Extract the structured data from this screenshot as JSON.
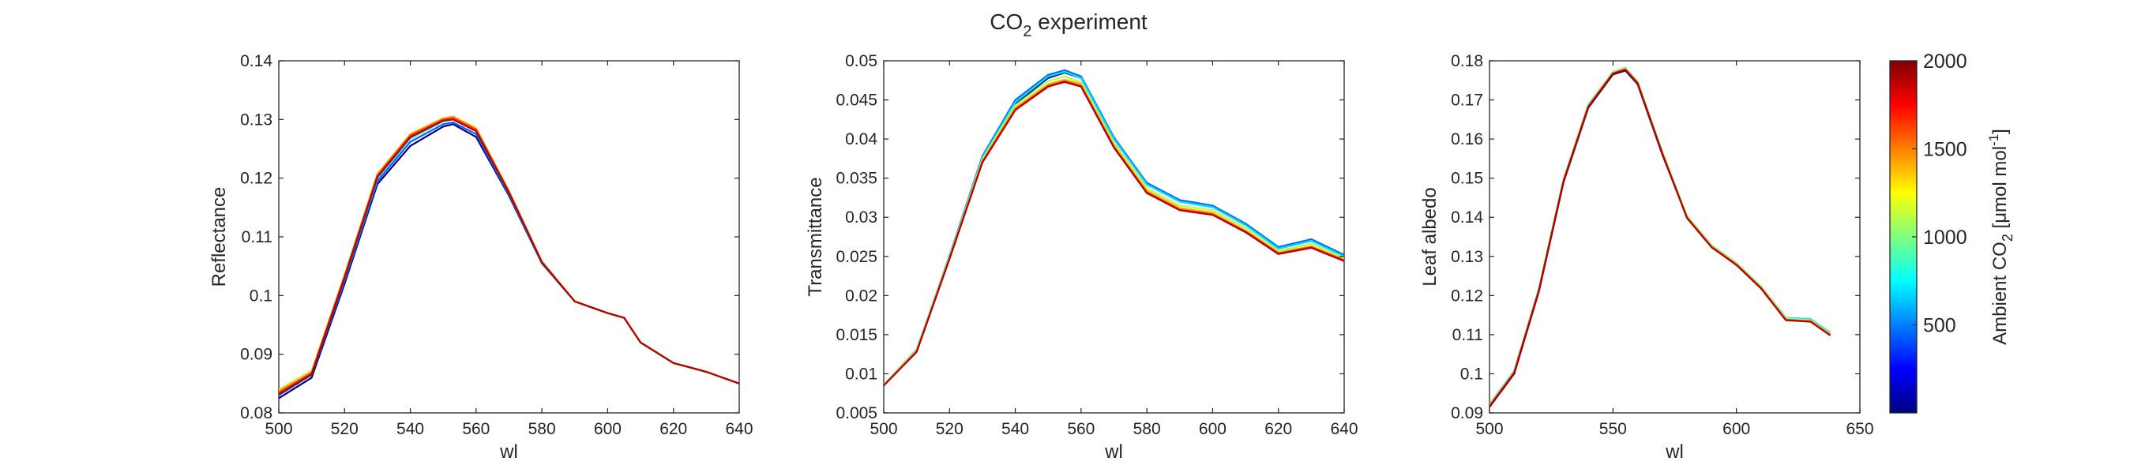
{
  "figure": {
    "title_main": "CO",
    "title_sub": "2",
    "title_rest": " experiment"
  },
  "chart_data": [
    {
      "type": "line",
      "xlabel": "wl",
      "ylabel": "Reflectance",
      "xlim": [
        500,
        640
      ],
      "ylim": [
        0.08,
        0.14
      ],
      "xticks": [
        500,
        520,
        540,
        560,
        580,
        600,
        620,
        640
      ],
      "yticks": [
        0.08,
        0.09,
        0.1,
        0.11,
        0.12,
        0.13,
        0.14
      ],
      "ytick_labels": [
        "0.08",
        "0.09",
        "0.1",
        "0.11",
        "0.12",
        "0.13",
        "0.14"
      ],
      "grid": false,
      "series": [
        {
          "color": "#00007f",
          "x": [
            500,
            510,
            520,
            530,
            540,
            550,
            553,
            560,
            570,
            580,
            590,
            600,
            605,
            610,
            620,
            630,
            640
          ],
          "y": [
            0.0825,
            0.086,
            0.102,
            0.119,
            0.1255,
            0.1288,
            0.1292,
            0.127,
            0.117,
            0.1055,
            0.099,
            0.097,
            0.0962,
            0.092,
            0.0885,
            0.087,
            0.085
          ]
        },
        {
          "color": "#0066ff",
          "x": [
            500,
            510,
            520,
            530,
            540,
            550,
            553,
            560,
            570,
            580,
            590,
            600,
            605,
            610,
            620,
            630,
            640
          ],
          "y": [
            0.083,
            0.0865,
            0.1025,
            0.1195,
            0.1262,
            0.1292,
            0.1295,
            0.1275,
            0.1172,
            0.1055,
            0.099,
            0.097,
            0.0962,
            0.092,
            0.0885,
            0.087,
            0.085
          ]
        },
        {
          "color": "#00e5ff",
          "x": [
            500,
            510,
            520,
            530,
            540,
            550,
            553,
            560,
            570,
            580,
            590,
            600,
            605,
            610,
            620,
            630,
            640
          ],
          "y": [
            0.0835,
            0.087,
            0.103,
            0.12,
            0.1268,
            0.1297,
            0.13,
            0.128,
            0.1175,
            0.1057,
            0.099,
            0.097,
            0.0962,
            0.092,
            0.0885,
            0.087,
            0.085
          ]
        },
        {
          "color": "#b3ff4d",
          "x": [
            500,
            510,
            520,
            530,
            540,
            550,
            553,
            560,
            570,
            580,
            590,
            600,
            605,
            610,
            620,
            630,
            640
          ],
          "y": [
            0.084,
            0.0872,
            0.1033,
            0.1205,
            0.1272,
            0.13,
            0.1303,
            0.1283,
            0.1177,
            0.1057,
            0.099,
            0.097,
            0.0962,
            0.092,
            0.0885,
            0.087,
            0.085
          ]
        },
        {
          "color": "#ffb300",
          "x": [
            500,
            510,
            520,
            530,
            540,
            550,
            553,
            560,
            570,
            580,
            590,
            600,
            605,
            610,
            620,
            630,
            640
          ],
          "y": [
            0.0838,
            0.087,
            0.1035,
            0.1207,
            0.1275,
            0.1302,
            0.1305,
            0.1285,
            0.1178,
            0.1058,
            0.099,
            0.097,
            0.0962,
            0.092,
            0.0885,
            0.087,
            0.085
          ]
        },
        {
          "color": "#ff4000",
          "x": [
            500,
            510,
            520,
            530,
            540,
            550,
            553,
            560,
            570,
            580,
            590,
            600,
            605,
            610,
            620,
            630,
            640
          ],
          "y": [
            0.0835,
            0.0868,
            0.1033,
            0.1205,
            0.1273,
            0.13,
            0.1303,
            0.1283,
            0.1177,
            0.1057,
            0.099,
            0.097,
            0.0962,
            0.092,
            0.0885,
            0.087,
            0.085
          ]
        },
        {
          "color": "#b30000",
          "x": [
            500,
            510,
            520,
            530,
            540,
            550,
            553,
            560,
            570,
            580,
            590,
            600,
            605,
            610,
            620,
            630,
            640
          ],
          "y": [
            0.0832,
            0.0866,
            0.103,
            0.1202,
            0.127,
            0.1298,
            0.13,
            0.128,
            0.1175,
            0.1057,
            0.099,
            0.097,
            0.0962,
            0.092,
            0.0885,
            0.087,
            0.085
          ]
        }
      ]
    },
    {
      "type": "line",
      "xlabel": "wl",
      "ylabel": "Transmittance",
      "xlim": [
        500,
        640
      ],
      "ylim": [
        0.005,
        0.05
      ],
      "xticks": [
        500,
        520,
        540,
        560,
        580,
        600,
        620,
        640
      ],
      "yticks": [
        0.005,
        0.01,
        0.015,
        0.02,
        0.025,
        0.03,
        0.035,
        0.04,
        0.045,
        0.05
      ],
      "ytick_labels": [
        "0.005",
        "0.01",
        "0.015",
        "0.02",
        "0.025",
        "0.03",
        "0.035",
        "0.04",
        "0.045",
        "0.05"
      ],
      "grid": false,
      "series": [
        {
          "color": "#00007f",
          "x": [
            500,
            510,
            520,
            530,
            540,
            550,
            555,
            560,
            570,
            580,
            590,
            600,
            610,
            620,
            630,
            640
          ],
          "y": [
            0.0085,
            0.013,
            0.025,
            0.0375,
            0.0445,
            0.0478,
            0.0485,
            0.0478,
            0.04,
            0.0342,
            0.032,
            0.0313,
            0.029,
            0.026,
            0.027,
            0.025
          ]
        },
        {
          "color": "#0066ff",
          "x": [
            500,
            510,
            520,
            530,
            540,
            550,
            555,
            560,
            570,
            580,
            590,
            600,
            610,
            620,
            630,
            640
          ],
          "y": [
            0.0085,
            0.013,
            0.0251,
            0.0378,
            0.045,
            0.0482,
            0.0488,
            0.048,
            0.0402,
            0.0344,
            0.0322,
            0.0315,
            0.0292,
            0.0262,
            0.0272,
            0.0252
          ]
        },
        {
          "color": "#00e5ff",
          "x": [
            500,
            510,
            520,
            530,
            540,
            550,
            555,
            560,
            570,
            580,
            590,
            600,
            610,
            620,
            630,
            640
          ],
          "y": [
            0.0086,
            0.0131,
            0.025,
            0.0376,
            0.0447,
            0.048,
            0.0486,
            0.0478,
            0.04,
            0.0342,
            0.032,
            0.0313,
            0.029,
            0.026,
            0.027,
            0.025
          ]
        },
        {
          "color": "#b3ff4d",
          "x": [
            500,
            510,
            520,
            530,
            540,
            550,
            555,
            560,
            570,
            580,
            590,
            600,
            610,
            620,
            630,
            640
          ],
          "y": [
            0.0086,
            0.013,
            0.0249,
            0.0374,
            0.0443,
            0.0474,
            0.048,
            0.0472,
            0.0395,
            0.0337,
            0.0315,
            0.0309,
            0.0286,
            0.0257,
            0.0266,
            0.0248
          ]
        },
        {
          "color": "#ffb300",
          "x": [
            500,
            510,
            520,
            530,
            540,
            550,
            555,
            560,
            570,
            580,
            590,
            600,
            610,
            620,
            630,
            640
          ],
          "y": [
            0.0085,
            0.0129,
            0.0248,
            0.0372,
            0.044,
            0.047,
            0.0476,
            0.047,
            0.0392,
            0.0334,
            0.0312,
            0.0306,
            0.0283,
            0.0255,
            0.0263,
            0.0246
          ]
        },
        {
          "color": "#ff4000",
          "x": [
            500,
            510,
            520,
            530,
            540,
            550,
            555,
            560,
            570,
            580,
            590,
            600,
            610,
            620,
            630,
            640
          ],
          "y": [
            0.0085,
            0.0128,
            0.0247,
            0.0371,
            0.0438,
            0.0468,
            0.0474,
            0.0468,
            0.039,
            0.0332,
            0.031,
            0.0304,
            0.0282,
            0.0254,
            0.0262,
            0.0245
          ]
        },
        {
          "color": "#b30000",
          "x": [
            500,
            510,
            520,
            530,
            540,
            550,
            555,
            560,
            570,
            580,
            590,
            600,
            610,
            620,
            630,
            640
          ],
          "y": [
            0.0085,
            0.0128,
            0.0247,
            0.037,
            0.0437,
            0.0467,
            0.0473,
            0.0467,
            0.0389,
            0.0331,
            0.0309,
            0.0303,
            0.0281,
            0.0253,
            0.0261,
            0.0244
          ]
        }
      ]
    },
    {
      "type": "line",
      "xlabel": "wl",
      "ylabel": "Leaf albedo",
      "xlim": [
        500,
        650
      ],
      "ylim": [
        0.09,
        0.18
      ],
      "xticks": [
        500,
        550,
        600,
        650
      ],
      "yticks": [
        0.09,
        0.1,
        0.11,
        0.12,
        0.13,
        0.14,
        0.15,
        0.16,
        0.17,
        0.18
      ],
      "ytick_labels": [
        "0.09",
        "0.1",
        "0.11",
        "0.12",
        "0.13",
        "0.14",
        "0.15",
        "0.16",
        "0.17",
        "0.18"
      ],
      "grid": false,
      "series": [
        {
          "color": "#00007f",
          "x": [
            500,
            510,
            520,
            530,
            540,
            550,
            555,
            560,
            570,
            580,
            590,
            600,
            610,
            620,
            630,
            638
          ],
          "y": [
            0.0915,
            0.1,
            0.121,
            0.149,
            0.168,
            0.1765,
            0.1775,
            0.174,
            0.156,
            0.14,
            0.1325,
            0.128,
            0.122,
            0.114,
            0.1135,
            0.11
          ]
        },
        {
          "color": "#0066ff",
          "x": [
            500,
            510,
            520,
            530,
            540,
            550,
            555,
            560,
            570,
            580,
            590,
            600,
            610,
            620,
            630,
            638
          ],
          "y": [
            0.092,
            0.1005,
            0.1215,
            0.1495,
            0.1685,
            0.177,
            0.178,
            0.1745,
            0.1565,
            0.1402,
            0.1327,
            0.1282,
            0.1222,
            0.1142,
            0.1138,
            0.1103
          ]
        },
        {
          "color": "#00e5ff",
          "x": [
            500,
            510,
            520,
            530,
            540,
            550,
            555,
            560,
            570,
            580,
            590,
            600,
            610,
            620,
            630,
            638
          ],
          "y": [
            0.0922,
            0.1008,
            0.1218,
            0.1498,
            0.1688,
            0.1772,
            0.1782,
            0.1747,
            0.1567,
            0.1403,
            0.1328,
            0.1283,
            0.1223,
            0.1143,
            0.114,
            0.1105
          ]
        },
        {
          "color": "#b3ff4d",
          "x": [
            500,
            510,
            520,
            530,
            540,
            550,
            555,
            560,
            570,
            580,
            590,
            600,
            610,
            620,
            630,
            638
          ],
          "y": [
            0.092,
            0.1006,
            0.1216,
            0.1496,
            0.1686,
            0.1771,
            0.1781,
            0.1746,
            0.1566,
            0.1402,
            0.1327,
            0.1282,
            0.1222,
            0.1141,
            0.1137,
            0.1102
          ]
        },
        {
          "color": "#ffb300",
          "x": [
            500,
            510,
            520,
            530,
            540,
            550,
            555,
            560,
            570,
            580,
            590,
            600,
            610,
            620,
            630,
            638
          ],
          "y": [
            0.0918,
            0.1004,
            0.1214,
            0.1494,
            0.1684,
            0.1769,
            0.1779,
            0.1744,
            0.1564,
            0.14,
            0.1325,
            0.128,
            0.122,
            0.1139,
            0.1135,
            0.11
          ]
        },
        {
          "color": "#ff4000",
          "x": [
            500,
            510,
            520,
            530,
            540,
            550,
            555,
            560,
            570,
            580,
            590,
            600,
            610,
            620,
            630,
            638
          ],
          "y": [
            0.0917,
            0.1003,
            0.1213,
            0.1493,
            0.1683,
            0.1768,
            0.1778,
            0.1743,
            0.1563,
            0.1399,
            0.1324,
            0.1279,
            0.1219,
            0.1138,
            0.1134,
            0.1099
          ]
        },
        {
          "color": "#b30000",
          "x": [
            500,
            510,
            520,
            530,
            540,
            550,
            555,
            560,
            570,
            580,
            590,
            600,
            610,
            620,
            630,
            638
          ],
          "y": [
            0.0916,
            0.1002,
            0.1212,
            0.1492,
            0.1682,
            0.1767,
            0.1777,
            0.1742,
            0.1562,
            0.1398,
            0.1323,
            0.1278,
            0.1218,
            0.1137,
            0.1133,
            0.1098
          ]
        }
      ]
    }
  ],
  "colorbar": {
    "label_main": "Ambient CO",
    "label_sub": "2",
    "label_unit": " [μmol mol",
    "label_sup": "-1",
    "label_end": "]",
    "range": [
      0,
      2000
    ],
    "ticks": [
      500,
      1000,
      1500,
      2000
    ],
    "tick_labels": [
      "500",
      "1000",
      "1500",
      "2000"
    ],
    "colormap": "jet",
    "colors": [
      "#00007f",
      "#0000ff",
      "#007fff",
      "#00ffff",
      "#7fff7f",
      "#ffff00",
      "#ff7f00",
      "#ff0000",
      "#7f0000"
    ]
  }
}
